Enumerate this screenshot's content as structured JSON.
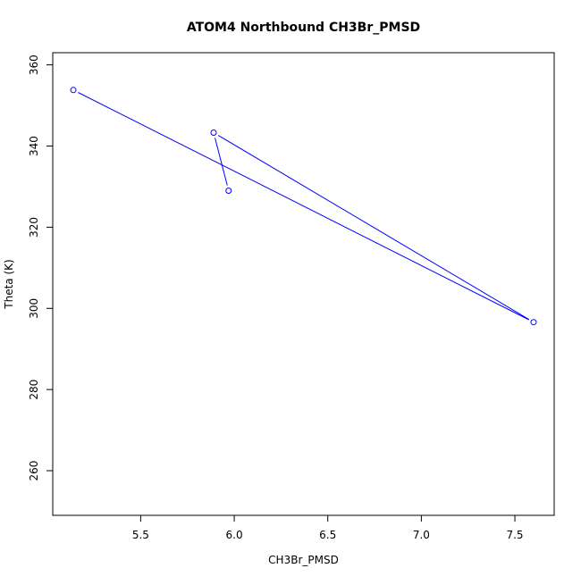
{
  "chart_data": {
    "type": "line",
    "title": "ATOM4 Northbound CH3Br_PMSD",
    "xlabel": "CH3Br_PMSD",
    "ylabel": "Theta (K)",
    "xlim": [
      5.03,
      7.71
    ],
    "ylim": [
      249,
      363
    ],
    "xticks": [
      "5.5",
      "6.0",
      "6.5",
      "7.0",
      "7.5"
    ],
    "yticks": [
      "260",
      "280",
      "300",
      "320",
      "340",
      "360"
    ],
    "grid": false,
    "legend": "none",
    "series": [
      {
        "color": "#0000ff",
        "marker": "open-circle",
        "points": [
          {
            "x": 5.97,
            "y": 329.0
          },
          {
            "x": 5.89,
            "y": 343.3
          },
          {
            "x": 7.6,
            "y": 296.6
          },
          {
            "x": 5.14,
            "y": 353.8
          }
        ]
      }
    ]
  }
}
